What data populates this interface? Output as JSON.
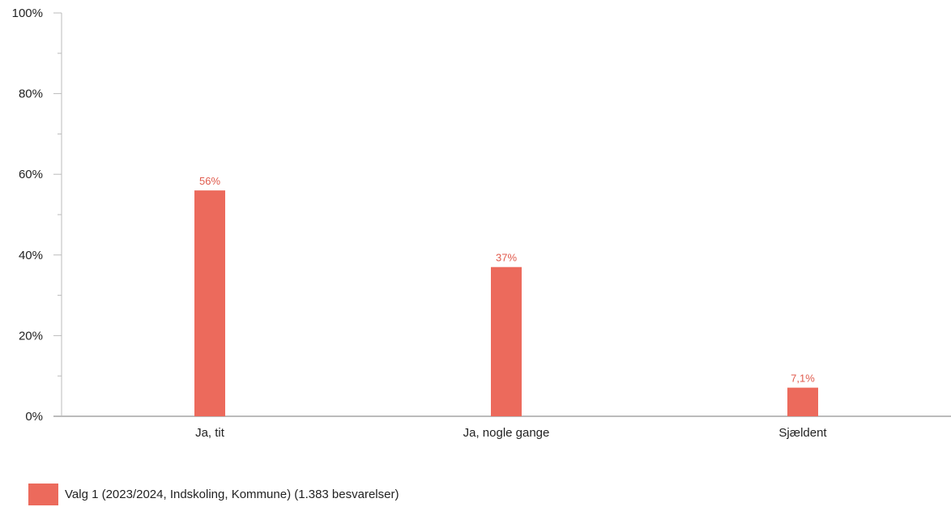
{
  "chart_data": {
    "type": "bar",
    "categories": [
      "Ja, tit",
      "Ja, nogle gange",
      "Sjældent"
    ],
    "series": [
      {
        "name": "Valg 1 (2023/2024, Indskoling, Kommune) (1.383 besvarelser)",
        "values": [
          56,
          37,
          7.1
        ],
        "value_labels": [
          "56%",
          "37%",
          "7,1%"
        ],
        "color": "#ec6a5c"
      }
    ],
    "ylim": [
      0,
      100
    ],
    "y_ticks": [
      0,
      20,
      40,
      60,
      80,
      100
    ],
    "y_tick_labels": [
      "0%",
      "20%",
      "40%",
      "60%",
      "80%",
      "100%"
    ],
    "grid": false,
    "legend_position": "bottom-left",
    "axis_color": "#bbbbbb",
    "label_color": "#e05a4c"
  },
  "legend": {
    "label": "Valg 1 (2023/2024, Indskoling, Kommune) (1.383 besvarelser)",
    "color": "#ec6a5c"
  }
}
